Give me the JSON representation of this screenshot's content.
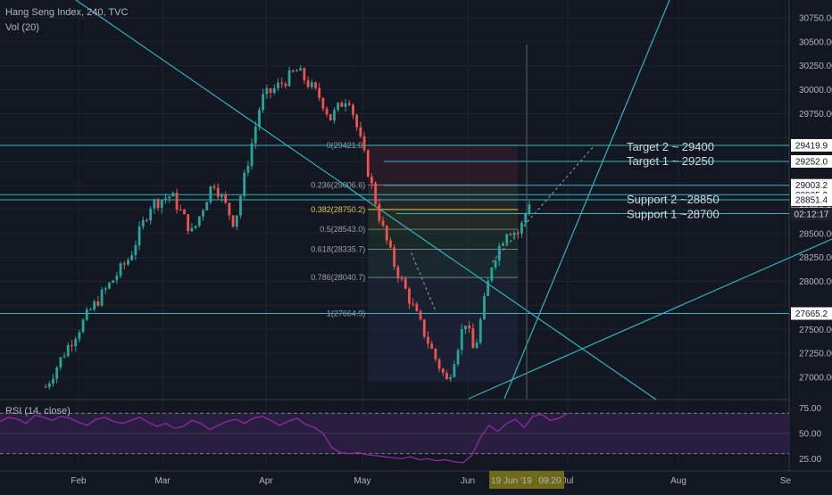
{
  "header": {
    "symbol": "Hang Seng Index, 240, TVC",
    "volume": "Vol (20)",
    "rsi": "RSI (14, close)"
  },
  "colors": {
    "background": "#131722",
    "up": "#26a69a",
    "down": "#ef5350",
    "teal_line": "#2fb5c0",
    "rsi_line": "#9c27b0",
    "rsi_band": "#2a1e40",
    "fib_golden": "#e0c54d",
    "date_highlight": "#6f6a19"
  },
  "chart_data": [
    {
      "type": "candlestick",
      "title": "Hang Seng Index, 240, TVC",
      "y_ticks": [
        "30750.00",
        "30500.00",
        "30250.00",
        "30000.00",
        "29750.00",
        "29500.00",
        "29250.00",
        "29000.00",
        "28750.00",
        "28500.00",
        "28250.00",
        "28000.00",
        "27750.00",
        "27500.00",
        "27250.00",
        "27000.00"
      ],
      "ylim": [
        26800,
        30900
      ],
      "x_ticks": [
        "Feb",
        "Mar",
        "Apr",
        "May",
        "Jun",
        "Jul",
        "Aug",
        "Se"
      ],
      "x_labels_highlight": [
        "19 Jun '19",
        "09:20"
      ],
      "grid": true,
      "waypoints": [
        {
          "x": "2019-01-21",
          "y": 26900
        },
        {
          "x": "2019-01-28",
          "y": 27300
        },
        {
          "x": "2019-02-05",
          "y": 27700
        },
        {
          "x": "2019-02-18",
          "y": 28250
        },
        {
          "x": "2019-02-25",
          "y": 28800
        },
        {
          "x": "2019-03-04",
          "y": 28900
        },
        {
          "x": "2019-03-11",
          "y": 28500
        },
        {
          "x": "2019-03-18",
          "y": 29050
        },
        {
          "x": "2019-03-25",
          "y": 28600
        },
        {
          "x": "2019-04-03",
          "y": 29900
        },
        {
          "x": "2019-04-09",
          "y": 30050
        },
        {
          "x": "2019-04-15",
          "y": 30200
        },
        {
          "x": "2019-04-23",
          "y": 29900
        },
        {
          "x": "2019-04-26",
          "y": 29700
        },
        {
          "x": "2019-05-02",
          "y": 29950
        },
        {
          "x": "2019-05-07",
          "y": 29350
        },
        {
          "x": "2019-05-13",
          "y": 28600
        },
        {
          "x": "2019-05-17",
          "y": 28200
        },
        {
          "x": "2019-05-24",
          "y": 27700
        },
        {
          "x": "2019-05-31",
          "y": 27200
        },
        {
          "x": "2019-06-04",
          "y": 26950
        },
        {
          "x": "2019-06-10",
          "y": 27600
        },
        {
          "x": "2019-06-13",
          "y": 27250
        },
        {
          "x": "2019-06-19",
          "y": 28200
        },
        {
          "x": "2019-06-24",
          "y": 28550
        },
        {
          "x": "2019-06-28",
          "y": 28500
        },
        {
          "x": "2019-07-02",
          "y": 28900
        }
      ],
      "horizontal_levels": [
        "29419.9",
        "29252.0",
        "29003.2",
        "28905.2",
        "28851.4",
        "28707.3",
        "27665.2"
      ],
      "current_time": "02:12:17",
      "fibonacci": [
        {
          "label": "0(29421.0)",
          "value": 29421.0
        },
        {
          "label": "0.236(29006.6)",
          "value": 29006.6
        },
        {
          "label": "0.382(28750.2)",
          "value": 28750.2
        },
        {
          "label": "0.5(28543.0)",
          "value": 28543.0
        },
        {
          "label": "0.618(28335.7)",
          "value": 28335.7
        },
        {
          "label": "0.786(28040.7)",
          "value": 28040.7
        },
        {
          "label": "1(27664.9)",
          "value": 27664.9
        }
      ],
      "annotations": [
        {
          "text": "Target 2 ~ 29400",
          "y": 29400
        },
        {
          "text": "Target 1 ~ 29250",
          "y": 29250
        },
        {
          "text": "Support 2 ~28850",
          "y": 28850
        },
        {
          "text": "Support 1 ~28700",
          "y": 28700
        }
      ]
    },
    {
      "type": "line",
      "title": "RSI (14, close)",
      "y_ticks": [
        "75.00",
        "50.00",
        "25.00"
      ],
      "ylim": [
        20,
        80
      ],
      "bands": [
        30,
        70
      ],
      "series": [
        {
          "values": [
            62,
            66,
            64,
            60,
            68,
            66,
            63,
            67,
            65,
            61,
            58,
            64,
            66,
            62,
            60,
            63,
            66,
            61,
            57,
            60,
            55,
            57,
            63,
            60,
            54,
            58,
            62,
            64,
            60,
            65,
            67,
            63,
            58,
            62,
            65,
            59,
            56,
            50,
            36,
            31,
            30,
            31,
            29,
            28,
            27,
            26,
            25,
            27,
            24,
            25,
            23,
            24,
            22,
            21,
            28,
            46,
            58,
            52,
            60,
            64,
            56,
            67,
            69,
            63,
            65,
            70
          ]
        }
      ]
    }
  ]
}
